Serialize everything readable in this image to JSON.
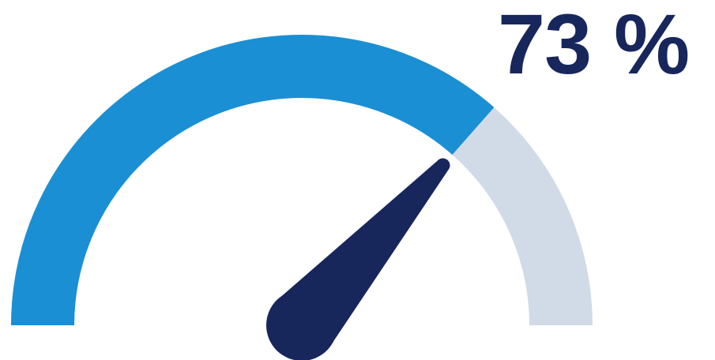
{
  "gauge": {
    "value": 73,
    "min": 0,
    "max": 100,
    "label": "73 %",
    "colors": {
      "filled": "#1b8fd4",
      "track": "#d1dbe7",
      "needle": "#17275c",
      "text": "#17275c"
    },
    "icons": {
      "needle": "gauge-needle-icon"
    }
  }
}
